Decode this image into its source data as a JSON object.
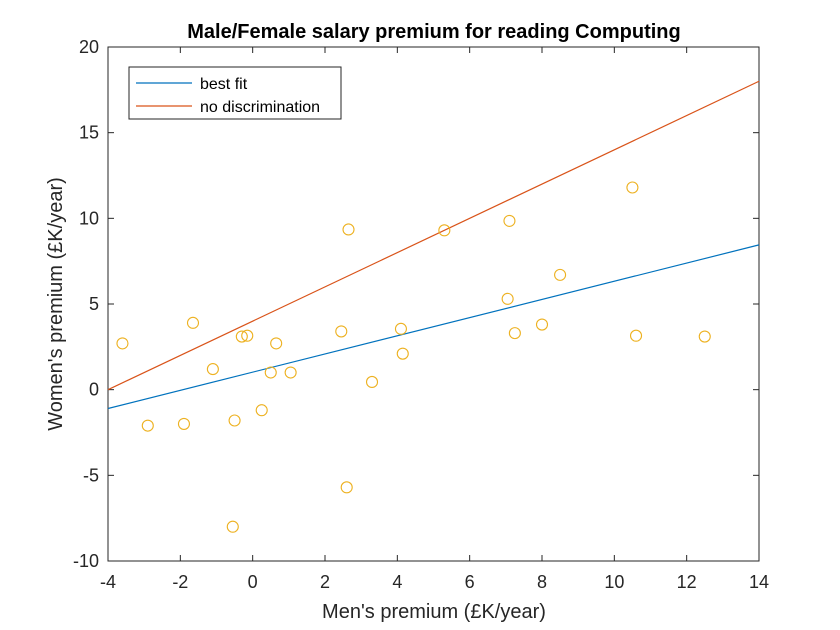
{
  "chart_data": {
    "type": "scatter",
    "title": "Male/Female salary premium for reading Computing",
    "xlabel": "Men's premium (£K/year)",
    "ylabel": "Women's premium (£K/year)",
    "xlim": [
      -4,
      14
    ],
    "ylim": [
      -10,
      20
    ],
    "xticks": [
      -4,
      -2,
      0,
      2,
      4,
      6,
      8,
      10,
      12,
      14
    ],
    "yticks": [
      -10,
      -5,
      0,
      5,
      10,
      15,
      20
    ],
    "grid": false,
    "legend_position": "top-left",
    "points_color": "#EDB120",
    "points": [
      {
        "x": -3.6,
        "y": 2.7
      },
      {
        "x": -2.9,
        "y": -2.1
      },
      {
        "x": -1.9,
        "y": -2.0
      },
      {
        "x": -1.65,
        "y": 3.9
      },
      {
        "x": -1.1,
        "y": 1.2
      },
      {
        "x": -0.55,
        "y": -8.0
      },
      {
        "x": -0.5,
        "y": -1.8
      },
      {
        "x": -0.3,
        "y": 3.1
      },
      {
        "x": -0.15,
        "y": 3.15
      },
      {
        "x": 0.25,
        "y": -1.2
      },
      {
        "x": 0.5,
        "y": 1.0
      },
      {
        "x": 0.65,
        "y": 2.7
      },
      {
        "x": 1.05,
        "y": 1.0
      },
      {
        "x": 2.45,
        "y": 3.4
      },
      {
        "x": 2.6,
        "y": -5.7
      },
      {
        "x": 2.65,
        "y": 9.35
      },
      {
        "x": 3.3,
        "y": 0.45
      },
      {
        "x": 4.1,
        "y": 3.55
      },
      {
        "x": 4.15,
        "y": 2.1
      },
      {
        "x": 5.3,
        "y": 9.3
      },
      {
        "x": 7.05,
        "y": 5.3
      },
      {
        "x": 7.1,
        "y": 9.85
      },
      {
        "x": 7.25,
        "y": 3.3
      },
      {
        "x": 8.0,
        "y": 3.8
      },
      {
        "x": 8.5,
        "y": 6.7
      },
      {
        "x": 10.5,
        "y": 11.8
      },
      {
        "x": 10.6,
        "y": 3.15
      },
      {
        "x": 12.5,
        "y": 3.1
      }
    ],
    "series": [
      {
        "name": "best fit",
        "color": "#0072BD",
        "x": [
          -4,
          14
        ],
        "y": [
          -1.1,
          8.45
        ]
      },
      {
        "name": "no discrimination",
        "color": "#D95319",
        "x": [
          -4,
          14
        ],
        "y": [
          0,
          18
        ]
      }
    ]
  }
}
